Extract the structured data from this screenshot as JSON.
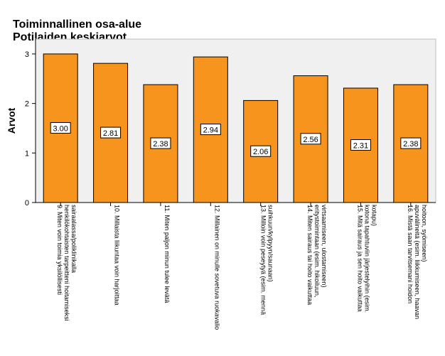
{
  "title_lines": [
    "Toiminnallinen osa-alue",
    "Potilaiden keskiarvot"
  ],
  "chart_data": {
    "type": "bar",
    "ylabel": "Arvot",
    "xlabel": "",
    "ylim": [
      0,
      3.3
    ],
    "yticks": [
      0,
      1,
      2,
      3
    ],
    "grid": false,
    "colors": {
      "bar": "#f7941d",
      "bar_edge": "#000000",
      "plot_bg": "#f0f0f0"
    },
    "categories": [
      "9. Miten voin toimia yksilöllisesti henkilökohtaisten tarpeitteni hoitamiseksi sairaalassa/poliklinikalla",
      "10. Millaista liikuntaa voin harjoittaa",
      "11. Miten paljon minun tulee levätä",
      "12. Millainen on minulle sovetuva ruokavalio",
      "13. Milloin voin peseytyä (esim. mennä suihkuun/kylpyyn/saunaan)",
      "14. Miten sairaus tai hoito vaikuttaa eritystoimintaan (esim. hikoiluun, virtsaamiseen, ulostamiseen)",
      "15. Mitä sairaus ja sen hoito vaikuttaa kotona tapahtuviin järjestelyihin (esim. kotapu)",
      "16. Mistä saan tarvitsemani hoidon apuvälineitä (esim. liikkumiseen, haavan hoitoon, syömiseen)"
    ],
    "category_lines": [
      [
        "9. Miten voin toimia yksilöllisesti",
        "henkilökohtaisten tarpeitteni hoitamiseksi",
        "sairaalassa/poliklinikalla"
      ],
      [
        "10. Millaista liikuntaa voin harjoittaa"
      ],
      [
        "11. Miten paljon minun tulee levätä"
      ],
      [
        "12. Millainen on minulle sovetuva ruokavalio"
      ],
      [
        "13. Milloin voin peseytyä (esim. mennä",
        "suihkuun/kylpyyn/saunaan)"
      ],
      [
        "14. Miten sairaus tai hoito vaikuttaa",
        "eritystoimintaan (esim. hikoiluun,",
        "virtsaamiseen, ulostamiseen)"
      ],
      [
        "15. Mitä sairaus ja sen hoito vaikuttaa",
        "kotona tapahtuviin järjestelyihin (esim.",
        "kotapu)"
      ],
      [
        "16. Mistä saan tarvitsemani hoidon",
        "apuvälineitä (esim. liikkumiseen, haavan",
        "hoitoon, syömiseen)"
      ]
    ],
    "values": [
      3.0,
      2.81,
      2.38,
      2.94,
      2.06,
      2.56,
      2.31,
      2.38
    ],
    "data_labels": [
      "3.00",
      "2.81",
      "2.38",
      "2.94",
      "2.06",
      "2.56",
      "2.31",
      "2.38"
    ]
  }
}
